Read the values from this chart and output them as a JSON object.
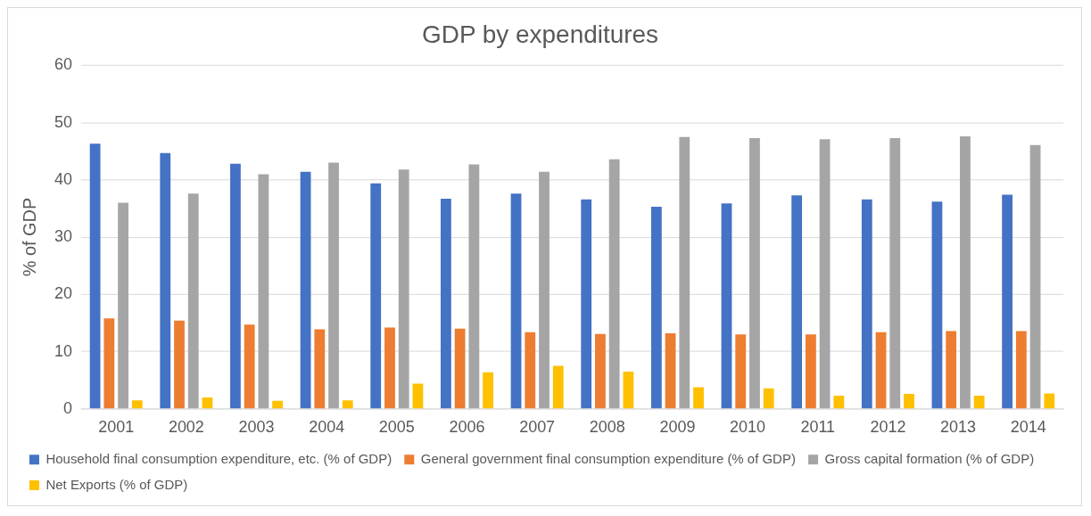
{
  "chart_data": {
    "type": "bar",
    "title": "GDP by expenditures",
    "ylabel": "% of GDP",
    "categories": [
      "2001",
      "2002",
      "2003",
      "2004",
      "2005",
      "2006",
      "2007",
      "2008",
      "2009",
      "2010",
      "2011",
      "2012",
      "2013",
      "2014"
    ],
    "series": [
      {
        "name": "Household final consumption expenditure, etc. (% of GDP)",
        "color": "#4472c4",
        "values": [
          46.3,
          44.7,
          42.8,
          41.4,
          39.4,
          36.7,
          37.6,
          36.6,
          35.3,
          35.9,
          37.3,
          36.6,
          36.2,
          37.4
        ]
      },
      {
        "name": "General government final consumption expenditure (% of GDP)",
        "color": "#ed7d31",
        "values": [
          15.8,
          15.4,
          14.7,
          13.9,
          14.2,
          14.0,
          13.4,
          13.1,
          13.2,
          13.0,
          13.0,
          13.4,
          13.6,
          13.6
        ]
      },
      {
        "name": "Gross capital formation (% of GDP)",
        "color": "#a5a5a5",
        "values": [
          36.0,
          37.6,
          41.0,
          43.0,
          41.8,
          42.7,
          41.4,
          43.6,
          47.5,
          47.3,
          47.1,
          47.3,
          47.6,
          46.1
        ]
      },
      {
        "name": "Net Exports (% of GDP)",
        "color": "#ffc000",
        "values": [
          1.5,
          2.0,
          1.4,
          1.5,
          4.4,
          6.4,
          7.5,
          6.5,
          3.8,
          3.6,
          2.3,
          2.6,
          2.3,
          2.7
        ]
      }
    ],
    "ylim": [
      0,
      60
    ],
    "yticks": [
      0,
      10,
      20,
      30,
      40,
      50,
      60
    ],
    "grid": "y",
    "legend": "bottom"
  }
}
